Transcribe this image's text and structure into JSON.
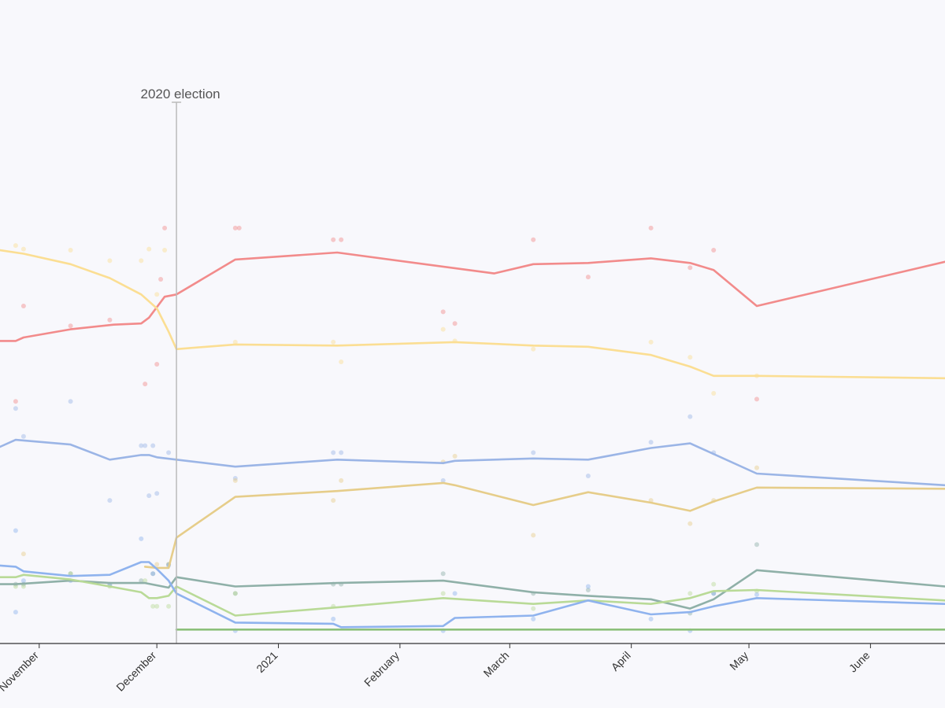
{
  "chart_data": {
    "type": "line",
    "title": "",
    "xlabel": "",
    "ylabel": "",
    "x_axis": {
      "type": "date",
      "range": [
        "2020-10-22",
        "2021-06-20"
      ],
      "ticks": [
        {
          "date": "2020-11-01",
          "label": "November"
        },
        {
          "date": "2020-12-01",
          "label": "December"
        },
        {
          "date": "2021-01-01",
          "label": "2021"
        },
        {
          "date": "2021-02-01",
          "label": "February"
        },
        {
          "date": "2021-03-01",
          "label": "March"
        },
        {
          "date": "2021-04-01",
          "label": "April"
        },
        {
          "date": "2021-05-01",
          "label": "May"
        },
        {
          "date": "2021-06-01",
          "label": "June"
        }
      ]
    },
    "y_axis": {
      "range": [
        0,
        48
      ],
      "visible": false
    },
    "grid": false,
    "annotations": [
      {
        "date": "2020-12-06",
        "label": "2020 election"
      }
    ],
    "series": [
      {
        "color": "#f28b8b",
        "values": [
          [
            "2020-10-22",
            26.0
          ],
          [
            "2020-10-26",
            26.0
          ],
          [
            "2020-10-28",
            26.3
          ],
          [
            "2020-11-09",
            27.0
          ],
          [
            "2020-11-20",
            27.4
          ],
          [
            "2020-11-27",
            27.5
          ],
          [
            "2020-11-29",
            28.0
          ],
          [
            "2020-12-03",
            29.8
          ],
          [
            "2020-12-06",
            30.0
          ],
          [
            "2020-12-21",
            33.0
          ],
          [
            "2021-01-16",
            33.6
          ],
          [
            "2021-02-25",
            31.8
          ],
          [
            "2021-03-07",
            32.6
          ],
          [
            "2021-03-21",
            32.7
          ],
          [
            "2021-04-06",
            33.1
          ],
          [
            "2021-04-16",
            32.7
          ],
          [
            "2021-04-22",
            32.1
          ],
          [
            "2021-05-03",
            29.0
          ],
          [
            "2021-06-20",
            32.8
          ]
        ],
        "points": [
          [
            "2020-10-26",
            20.8
          ],
          [
            "2020-10-28",
            29.0
          ],
          [
            "2020-11-09",
            27.3
          ],
          [
            "2020-11-19",
            27.8
          ],
          [
            "2020-11-28",
            22.3
          ],
          [
            "2020-12-01",
            24.0
          ],
          [
            "2020-12-02",
            31.3
          ],
          [
            "2020-12-03",
            35.7
          ],
          [
            "2020-12-21",
            35.7
          ],
          [
            "2020-12-22",
            35.7
          ],
          [
            "2021-01-15",
            34.7
          ],
          [
            "2021-01-17",
            34.7
          ],
          [
            "2021-02-12",
            28.5
          ],
          [
            "2021-02-15",
            27.5
          ],
          [
            "2021-03-07",
            34.7
          ],
          [
            "2021-03-21",
            31.5
          ],
          [
            "2021-04-06",
            35.7
          ],
          [
            "2021-04-16",
            32.3
          ],
          [
            "2021-04-22",
            33.8
          ],
          [
            "2021-05-03",
            21.0
          ]
        ]
      },
      {
        "color": "#fbde93",
        "values": [
          [
            "2020-10-22",
            33.8
          ],
          [
            "2020-10-28",
            33.5
          ],
          [
            "2020-11-09",
            32.6
          ],
          [
            "2020-11-19",
            31.4
          ],
          [
            "2020-11-27",
            30.0
          ],
          [
            "2020-12-01",
            28.8
          ],
          [
            "2020-12-04",
            26.8
          ],
          [
            "2020-12-06",
            25.3
          ],
          [
            "2020-12-21",
            25.7
          ],
          [
            "2021-01-16",
            25.6
          ],
          [
            "2021-02-15",
            25.9
          ],
          [
            "2021-03-07",
            25.6
          ],
          [
            "2021-03-21",
            25.5
          ],
          [
            "2021-04-06",
            24.8
          ],
          [
            "2021-04-16",
            23.8
          ],
          [
            "2021-04-22",
            23.0
          ],
          [
            "2021-05-03",
            23.0
          ],
          [
            "2021-06-20",
            22.8
          ]
        ],
        "points": [
          [
            "2020-10-26",
            34.2
          ],
          [
            "2020-10-28",
            33.9
          ],
          [
            "2020-11-09",
            33.8
          ],
          [
            "2020-11-19",
            32.9
          ],
          [
            "2020-11-27",
            32.9
          ],
          [
            "2020-11-29",
            33.9
          ],
          [
            "2020-12-01",
            30.0
          ],
          [
            "2020-12-03",
            33.8
          ],
          [
            "2020-12-21",
            25.9
          ],
          [
            "2021-01-15",
            25.9
          ],
          [
            "2021-01-17",
            24.2
          ],
          [
            "2021-02-12",
            27.0
          ],
          [
            "2021-02-15",
            26.0
          ],
          [
            "2021-03-07",
            25.3
          ],
          [
            "2021-04-06",
            25.9
          ],
          [
            "2021-04-16",
            24.6
          ],
          [
            "2021-04-22",
            21.5
          ],
          [
            "2021-05-03",
            23.0
          ]
        ]
      },
      {
        "color": "#9bb5e6",
        "values": [
          [
            "2020-10-22",
            16.9
          ],
          [
            "2020-10-26",
            17.5
          ],
          [
            "2020-11-09",
            17.1
          ],
          [
            "2020-11-19",
            15.8
          ],
          [
            "2020-11-27",
            16.2
          ],
          [
            "2020-11-29",
            16.2
          ],
          [
            "2020-12-01",
            16.0
          ],
          [
            "2020-12-06",
            15.8
          ],
          [
            "2020-12-21",
            15.2
          ],
          [
            "2021-01-16",
            15.8
          ],
          [
            "2021-02-12",
            15.5
          ],
          [
            "2021-02-15",
            15.7
          ],
          [
            "2021-03-07",
            15.9
          ],
          [
            "2021-03-21",
            15.8
          ],
          [
            "2021-04-06",
            16.8
          ],
          [
            "2021-04-16",
            17.2
          ],
          [
            "2021-05-03",
            14.6
          ],
          [
            "2021-06-20",
            13.6
          ]
        ],
        "points": [
          [
            "2020-10-26",
            20.2
          ],
          [
            "2020-10-28",
            17.8
          ],
          [
            "2020-11-09",
            20.8
          ],
          [
            "2020-11-19",
            12.3
          ],
          [
            "2020-11-27",
            17.0
          ],
          [
            "2020-11-28",
            17.0
          ],
          [
            "2020-11-29",
            12.7
          ],
          [
            "2020-11-30",
            17.0
          ],
          [
            "2020-12-01",
            12.9
          ],
          [
            "2020-12-04",
            16.4
          ],
          [
            "2020-12-21",
            14.2
          ],
          [
            "2021-01-15",
            16.4
          ],
          [
            "2021-01-17",
            16.4
          ],
          [
            "2021-02-12",
            14.0
          ],
          [
            "2021-03-07",
            16.4
          ],
          [
            "2021-03-21",
            14.4
          ],
          [
            "2021-04-06",
            17.3
          ],
          [
            "2021-04-16",
            19.5
          ],
          [
            "2021-04-22",
            16.4
          ]
        ]
      },
      {
        "color": "#e6cd8a",
        "values": [
          [
            "2020-11-28",
            6.6
          ],
          [
            "2020-12-01",
            6.5
          ],
          [
            "2020-12-04",
            6.5
          ],
          [
            "2020-12-06",
            9.1
          ],
          [
            "2020-12-21",
            12.6
          ],
          [
            "2021-01-16",
            13.1
          ],
          [
            "2021-02-12",
            13.8
          ],
          [
            "2021-02-15",
            13.6
          ],
          [
            "2021-03-07",
            11.9
          ],
          [
            "2021-03-21",
            13.0
          ],
          [
            "2021-04-06",
            12.1
          ],
          [
            "2021-04-16",
            11.4
          ],
          [
            "2021-04-22",
            12.2
          ],
          [
            "2021-05-03",
            13.4
          ],
          [
            "2021-06-20",
            13.3
          ]
        ],
        "points": [
          [
            "2020-10-28",
            7.7
          ],
          [
            "2020-12-01",
            6.8
          ],
          [
            "2020-12-04",
            6.8
          ],
          [
            "2020-12-21",
            14.0
          ],
          [
            "2021-01-15",
            12.3
          ],
          [
            "2021-01-17",
            14.0
          ],
          [
            "2021-02-12",
            15.6
          ],
          [
            "2021-02-15",
            16.1
          ],
          [
            "2021-03-07",
            9.3
          ],
          [
            "2021-04-06",
            12.3
          ],
          [
            "2021-04-16",
            10.3
          ],
          [
            "2021-04-22",
            12.3
          ],
          [
            "2021-05-03",
            15.1
          ]
        ]
      },
      {
        "color": "#8fb0a8",
        "values": [
          [
            "2020-10-22",
            5.1
          ],
          [
            "2020-10-26",
            5.1
          ],
          [
            "2020-11-09",
            5.4
          ],
          [
            "2020-11-19",
            5.2
          ],
          [
            "2020-11-28",
            5.2
          ],
          [
            "2020-12-04",
            4.8
          ],
          [
            "2020-12-06",
            5.7
          ],
          [
            "2020-12-21",
            4.9
          ],
          [
            "2021-01-16",
            5.2
          ],
          [
            "2021-02-12",
            5.4
          ],
          [
            "2021-03-07",
            4.4
          ],
          [
            "2021-03-21",
            4.1
          ],
          [
            "2021-04-06",
            3.8
          ],
          [
            "2021-04-16",
            3.0
          ],
          [
            "2021-04-22",
            3.8
          ],
          [
            "2021-05-03",
            6.3
          ],
          [
            "2021-06-20",
            4.9
          ]
        ],
        "points": [
          [
            "2020-10-26",
            5.1
          ],
          [
            "2020-10-28",
            5.1
          ],
          [
            "2020-11-09",
            6.0
          ],
          [
            "2020-11-19",
            5.1
          ],
          [
            "2020-11-27",
            5.4
          ],
          [
            "2020-11-30",
            6.0
          ],
          [
            "2020-12-04",
            6.8
          ],
          [
            "2020-12-21",
            4.3
          ],
          [
            "2021-01-15",
            5.1
          ],
          [
            "2021-01-17",
            5.1
          ],
          [
            "2021-02-12",
            6.0
          ],
          [
            "2021-03-07",
            4.3
          ],
          [
            "2021-03-21",
            4.6
          ],
          [
            "2021-04-16",
            2.6
          ],
          [
            "2021-04-22",
            4.3
          ],
          [
            "2021-05-03",
            8.5
          ]
        ]
      },
      {
        "color": "#b9da97",
        "values": [
          [
            "2020-10-22",
            5.7
          ],
          [
            "2020-10-26",
            5.7
          ],
          [
            "2020-10-28",
            5.9
          ],
          [
            "2020-11-09",
            5.5
          ],
          [
            "2020-11-19",
            4.9
          ],
          [
            "2020-11-27",
            4.4
          ],
          [
            "2020-11-29",
            3.9
          ],
          [
            "2020-12-01",
            3.9
          ],
          [
            "2020-12-04",
            4.1
          ],
          [
            "2020-12-06",
            4.9
          ],
          [
            "2020-12-21",
            2.4
          ],
          [
            "2021-01-16",
            3.1
          ],
          [
            "2021-02-12",
            3.9
          ],
          [
            "2021-03-07",
            3.4
          ],
          [
            "2021-03-21",
            3.7
          ],
          [
            "2021-04-06",
            3.4
          ],
          [
            "2021-04-16",
            3.9
          ],
          [
            "2021-04-22",
            4.5
          ],
          [
            "2021-05-03",
            4.6
          ],
          [
            "2021-06-20",
            3.7
          ]
        ],
        "points": [
          [
            "2020-10-26",
            4.9
          ],
          [
            "2020-10-28",
            4.9
          ],
          [
            "2020-11-09",
            6.0
          ],
          [
            "2020-11-19",
            4.9
          ],
          [
            "2020-11-28",
            5.4
          ],
          [
            "2020-11-30",
            3.2
          ],
          [
            "2020-12-01",
            3.2
          ],
          [
            "2020-12-04",
            3.2
          ],
          [
            "2020-12-21",
            4.3
          ],
          [
            "2021-01-15",
            3.2
          ],
          [
            "2021-02-12",
            4.3
          ],
          [
            "2021-03-07",
            3.0
          ],
          [
            "2021-04-16",
            4.3
          ],
          [
            "2021-04-22",
            5.1
          ],
          [
            "2021-05-03",
            4.5
          ]
        ]
      },
      {
        "color": "#8fb3ee",
        "values": [
          [
            "2020-10-22",
            6.7
          ],
          [
            "2020-10-26",
            6.6
          ],
          [
            "2020-10-28",
            6.2
          ],
          [
            "2020-11-09",
            5.8
          ],
          [
            "2020-11-19",
            5.9
          ],
          [
            "2020-11-27",
            7.0
          ],
          [
            "2020-11-29",
            7.0
          ],
          [
            "2020-12-01",
            6.4
          ],
          [
            "2020-12-04",
            5.4
          ],
          [
            "2020-12-06",
            4.3
          ],
          [
            "2020-12-21",
            1.8
          ],
          [
            "2021-01-15",
            1.7
          ],
          [
            "2021-01-17",
            1.4
          ],
          [
            "2021-02-12",
            1.5
          ],
          [
            "2021-02-15",
            2.2
          ],
          [
            "2021-03-07",
            2.4
          ],
          [
            "2021-03-21",
            3.7
          ],
          [
            "2021-04-06",
            2.5
          ],
          [
            "2021-04-16",
            2.7
          ],
          [
            "2021-04-22",
            3.2
          ],
          [
            "2021-05-03",
            3.9
          ],
          [
            "2021-06-20",
            3.4
          ]
        ],
        "points": [
          [
            "2020-10-26",
            9.7
          ],
          [
            "2020-10-26",
            2.7
          ],
          [
            "2020-10-28",
            5.4
          ],
          [
            "2020-11-09",
            5.4
          ],
          [
            "2020-11-19",
            5.0
          ],
          [
            "2020-11-27",
            9.0
          ],
          [
            "2020-11-30",
            6.0
          ],
          [
            "2020-12-04",
            6.7
          ],
          [
            "2020-12-21",
            1.1
          ],
          [
            "2021-01-15",
            2.1
          ],
          [
            "2021-02-12",
            1.1
          ],
          [
            "2021-02-15",
            4.3
          ],
          [
            "2021-03-07",
            2.1
          ],
          [
            "2021-03-21",
            4.9
          ],
          [
            "2021-04-06",
            2.1
          ],
          [
            "2021-04-16",
            1.1
          ],
          [
            "2021-04-22",
            4.3
          ],
          [
            "2021-05-03",
            4.2
          ]
        ]
      },
      {
        "color": "#8cc07a",
        "values": [
          [
            "2020-12-06",
            1.2
          ],
          [
            "2021-06-20",
            1.2
          ]
        ],
        "points": []
      }
    ]
  }
}
